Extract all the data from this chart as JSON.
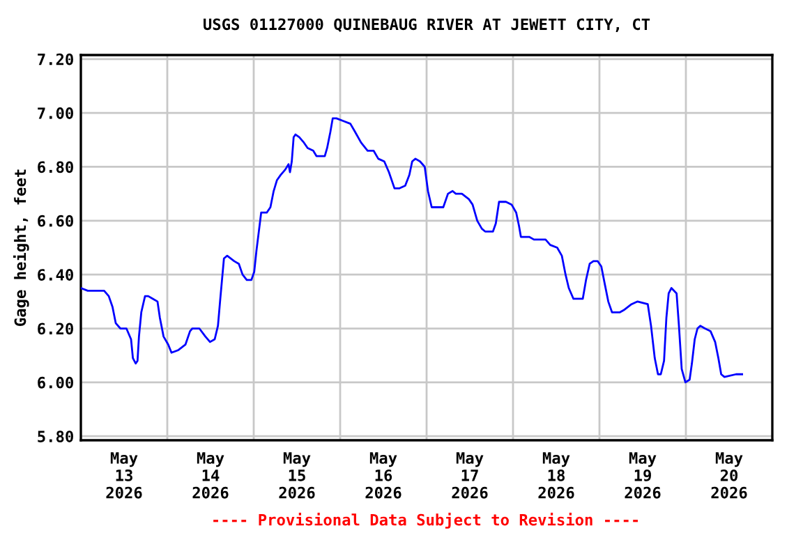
{
  "chart_data": {
    "type": "line",
    "title": "USGS 01127000 QUINEBAUG RIVER AT JEWETT CITY, CT",
    "ylabel": "Gage height, feet",
    "annotations": [
      "---- Provisional Data Subject to Revision ----"
    ],
    "x": [
      "2026-05-12T12:00",
      "2026-05-12T13:55",
      "2026-05-12T18:28",
      "2026-05-12T19:45",
      "2026-05-12T20:47",
      "2026-05-12T21:41",
      "2026-05-12T22:58",
      "2026-05-13T00:39",
      "2026-05-13T01:56",
      "2026-05-13T02:27",
      "2026-05-13T03:14",
      "2026-05-13T03:44",
      "2026-05-13T04:08",
      "2026-05-13T04:47",
      "2026-05-13T05:49",
      "2026-05-13T06:43",
      "2026-05-13T08:00",
      "2026-05-13T09:17",
      "2026-05-13T09:56",
      "2026-05-13T10:58",
      "2026-05-13T12:16",
      "2026-05-13T13:10",
      "2026-05-13T15:06",
      "2026-05-13T17:02",
      "2026-05-13T18:19",
      "2026-05-13T18:58",
      "2026-05-13T20:54",
      "2026-05-13T22:35",
      "2026-05-13T23:52",
      "2026-05-14T01:10",
      "2026-05-14T02:04",
      "2026-05-14T02:43",
      "2026-05-14T03:44",
      "2026-05-14T04:38",
      "2026-05-14T06:35",
      "2026-05-14T07:52",
      "2026-05-14T08:54",
      "2026-05-14T10:04",
      "2026-05-14T11:21",
      "2026-05-14T12:08",
      "2026-05-14T12:46",
      "2026-05-14T13:25",
      "2026-05-14T14:04",
      "2026-05-14T15:37",
      "2026-05-14T16:38",
      "2026-05-14T17:32",
      "2026-05-14T18:26",
      "2026-05-14T19:29",
      "2026-05-14T20:46",
      "2026-05-14T21:40",
      "2026-05-14T22:04",
      "2026-05-14T22:34",
      "2026-05-14T23:05",
      "2026-05-14T23:36",
      "2026-05-15T00:38",
      "2026-05-15T01:56",
      "2026-05-15T02:58",
      "2026-05-15T04:31",
      "2026-05-15T05:25",
      "2026-05-15T07:44",
      "2026-05-15T08:23",
      "2026-05-15T09:17",
      "2026-05-15T09:56",
      "2026-05-15T10:58",
      "2026-05-15T12:54",
      "2026-05-15T14:50",
      "2026-05-15T16:08",
      "2026-05-15T17:48",
      "2026-05-15T19:37",
      "2026-05-15T21:17",
      "2026-05-15T22:35",
      "2026-05-16T00:15",
      "2026-05-16T01:33",
      "2026-05-16T03:05",
      "2026-05-16T04:23",
      "2026-05-16T06:04",
      "2026-05-16T07:13",
      "2026-05-16T08:00",
      "2026-05-16T08:54",
      "2026-05-16T10:11",
      "2026-05-16T11:29",
      "2026-05-16T12:23",
      "2026-05-16T13:25",
      "2026-05-16T16:38",
      "2026-05-16T17:56",
      "2026-05-16T19:13",
      "2026-05-16T20:07",
      "2026-05-16T21:48",
      "2026-05-16T23:44",
      "2026-05-17T00:46",
      "2026-05-17T02:04",
      "2026-05-17T03:21",
      "2026-05-17T04:15",
      "2026-05-17T06:26",
      "2026-05-17T07:13",
      "2026-05-17T08:07",
      "2026-05-17T10:03",
      "2026-05-17T11:36",
      "2026-05-17T12:53",
      "2026-05-17T13:40",
      "2026-05-17T14:11",
      "2026-05-17T16:30",
      "2026-05-17T17:49",
      "2026-05-17T21:02",
      "2026-05-17T22:20",
      "2026-05-18T00:16",
      "2026-05-18T01:33",
      "2026-05-18T02:35",
      "2026-05-18T03:29",
      "2026-05-18T04:47",
      "2026-05-18T06:04",
      "2026-05-18T07:22",
      "2026-05-18T08:16",
      "2026-05-18T09:17",
      "2026-05-18T10:19",
      "2026-05-18T11:29",
      "2026-05-18T12:31",
      "2026-05-18T13:33",
      "2026-05-18T14:27",
      "2026-05-18T15:29",
      "2026-05-18T17:41",
      "2026-05-18T18:58",
      "2026-05-18T20:54",
      "2026-05-18T22:35",
      "2026-05-19T01:25",
      "2026-05-19T02:19",
      "2026-05-19T03:21",
      "2026-05-19T04:15",
      "2026-05-19T05:02",
      "2026-05-19T05:56",
      "2026-05-19T06:35",
      "2026-05-19T07:13",
      "2026-05-19T07:59",
      "2026-05-19T09:25",
      "2026-05-19T10:04",
      "2026-05-19T10:50",
      "2026-05-19T11:52",
      "2026-05-19T13:02",
      "2026-05-19T13:40",
      "2026-05-19T14:27",
      "2026-05-19T15:13",
      "2026-05-19T16:00",
      "2026-05-19T17:17",
      "2026-05-19T18:50",
      "2026-05-19T20:07",
      "2026-05-19T21:01",
      "2026-05-19T21:48",
      "2026-05-19T22:42",
      "2026-05-20T01:56",
      "2026-05-20T03:36"
    ],
    "series": [
      {
        "color": "#0000ff",
        "values": [
          6.35,
          6.34,
          6.34,
          6.32,
          6.28,
          6.22,
          6.2,
          6.2,
          6.16,
          6.09,
          6.07,
          6.08,
          6.17,
          6.26,
          6.32,
          6.32,
          6.31,
          6.3,
          6.24,
          6.17,
          6.14,
          6.11,
          6.12,
          6.14,
          6.19,
          6.2,
          6.2,
          6.17,
          6.15,
          6.16,
          6.21,
          6.31,
          6.46,
          6.47,
          6.45,
          6.44,
          6.4,
          6.38,
          6.38,
          6.41,
          6.49,
          6.56,
          6.63,
          6.63,
          6.65,
          6.71,
          6.75,
          6.77,
          6.79,
          6.81,
          6.78,
          6.82,
          6.91,
          6.92,
          6.91,
          6.89,
          6.87,
          6.86,
          6.84,
          6.84,
          6.87,
          6.93,
          6.98,
          6.98,
          6.97,
          6.96,
          6.93,
          6.89,
          6.86,
          6.86,
          6.83,
          6.82,
          6.78,
          6.72,
          6.72,
          6.73,
          6.77,
          6.82,
          6.83,
          6.82,
          6.8,
          6.71,
          6.65,
          6.65,
          6.7,
          6.71,
          6.7,
          6.7,
          6.68,
          6.66,
          6.6,
          6.57,
          6.56,
          6.56,
          6.59,
          6.67,
          6.67,
          6.66,
          6.63,
          6.58,
          6.54,
          6.54,
          6.53,
          6.53,
          6.51,
          6.5,
          6.47,
          6.4,
          6.35,
          6.31,
          6.31,
          6.31,
          6.38,
          6.44,
          6.45,
          6.45,
          6.43,
          6.36,
          6.3,
          6.26,
          6.26,
          6.27,
          6.29,
          6.3,
          6.29,
          6.21,
          6.09,
          6.03,
          6.03,
          6.08,
          6.24,
          6.33,
          6.35,
          6.33,
          6.21,
          6.05,
          6.0,
          6.01,
          6.07,
          6.16,
          6.2,
          6.21,
          6.2,
          6.19,
          6.15,
          6.09,
          6.03,
          6.02,
          6.03,
          6.03
        ]
      }
    ],
    "xlim": [
      "2026-05-12T12:00",
      "2026-05-20T12:00"
    ],
    "xticks": [
      {
        "value": "2026-05-13",
        "label": "May\n13\n2026"
      },
      {
        "value": "2026-05-14",
        "label": "May\n14\n2026"
      },
      {
        "value": "2026-05-15",
        "label": "May\n15\n2026"
      },
      {
        "value": "2026-05-16",
        "label": "May\n16\n2026"
      },
      {
        "value": "2026-05-17",
        "label": "May\n17\n2026"
      },
      {
        "value": "2026-05-18",
        "label": "May\n18\n2026"
      },
      {
        "value": "2026-05-19",
        "label": "May\n19\n2026"
      },
      {
        "value": "2026-05-20",
        "label": "May\n20\n2026"
      },
      {
        "value": "2026-05-12T12:00",
        "label": null
      },
      {
        "value": "2026-05-13T12:00",
        "label": null
      },
      {
        "value": "2026-05-14T12:00",
        "label": null
      },
      {
        "value": "2026-05-15T12:00",
        "label": null
      },
      {
        "value": "2026-05-16T12:00",
        "label": null
      },
      {
        "value": "2026-05-17T12:00",
        "label": null
      },
      {
        "value": "2026-05-18T12:00",
        "label": null
      },
      {
        "value": "2026-05-19T12:00",
        "label": null
      }
    ],
    "ylim": [
      5.785,
      7.215
    ],
    "yticks": [
      {
        "value": 5.8,
        "label": "5.80"
      },
      {
        "value": 6.0,
        "label": "6.00"
      },
      {
        "value": 6.2,
        "label": "6.20"
      },
      {
        "value": 6.4,
        "label": "6.40"
      },
      {
        "value": 6.6,
        "label": "6.60"
      },
      {
        "value": 6.8,
        "label": "6.80"
      },
      {
        "value": 7.0,
        "label": "7.00"
      },
      {
        "value": 7.2,
        "label": "7.20"
      }
    ],
    "grid": true,
    "legend": false
  }
}
